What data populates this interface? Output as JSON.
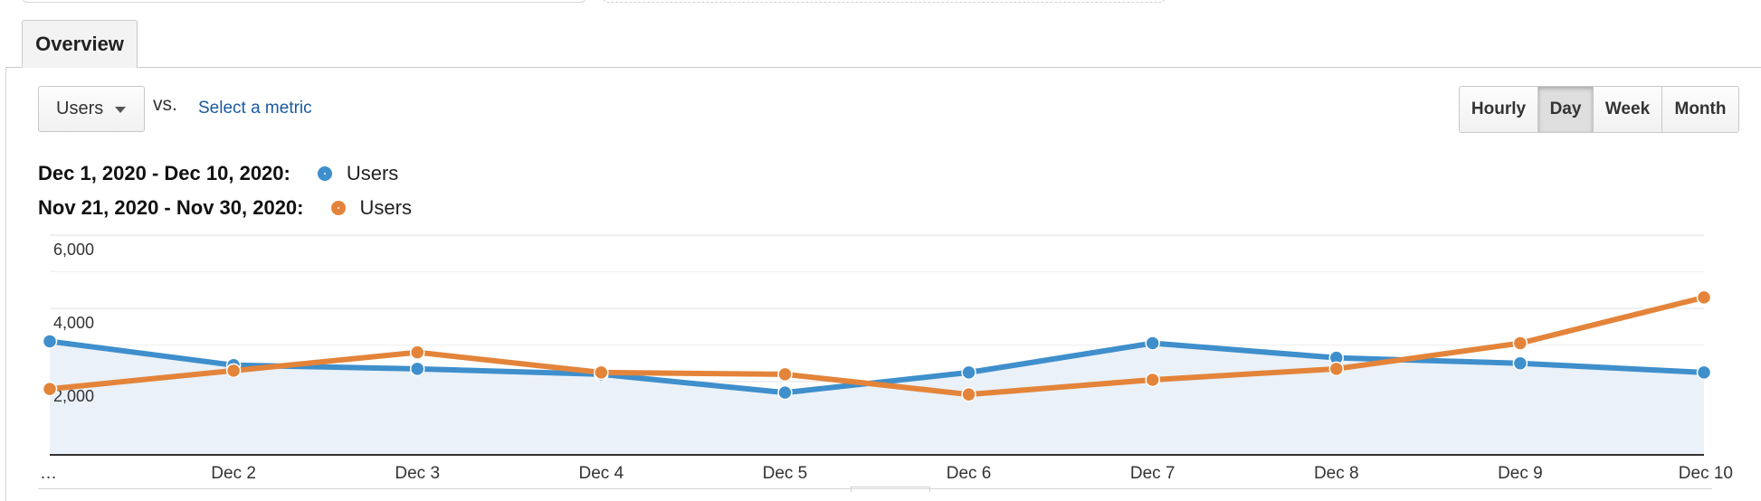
{
  "tabs": [
    {
      "label": "Overview",
      "active": true
    }
  ],
  "metric_selector": {
    "value": "Users",
    "icon": "caret-down-icon"
  },
  "compare": {
    "vs_label": "vs.",
    "select_label": "Select a metric"
  },
  "granularity": {
    "options": [
      {
        "key": "hourly",
        "label": "Hourly"
      },
      {
        "key": "day",
        "label": "Day"
      },
      {
        "key": "week",
        "label": "Week"
      },
      {
        "key": "month",
        "label": "Month"
      }
    ],
    "selected": "Day"
  },
  "legend": [
    {
      "range": "Dec 1, 2020 - Dec 10, 2020:",
      "series": "Users",
      "color": "#3e8fcb"
    },
    {
      "range": "Nov 21, 2020 - Nov 30, 2020:",
      "series": "Users",
      "color": "#e3843a"
    }
  ],
  "chart_data": {
    "type": "line",
    "categories": [
      "…",
      "Dec 2",
      "Dec 3",
      "Dec 4",
      "Dec 5",
      "Dec 6",
      "Dec 7",
      "Dec 8",
      "Dec 9",
      "Dec 10"
    ],
    "ylim": [
      0,
      6000
    ],
    "y_ticks": [
      2000,
      4000,
      6000
    ],
    "y_tick_labels": [
      "2,000",
      "4,000",
      "6,000"
    ],
    "grid": true,
    "series": [
      {
        "name": "Users",
        "color": "#3e8fcb",
        "area_fill": "#eaf1f9",
        "values": [
          3100,
          2450,
          2350,
          2200,
          1700,
          2250,
          3050,
          2650,
          2500,
          2250
        ]
      },
      {
        "name": "Users",
        "color": "#e3843a",
        "values": [
          1800,
          2300,
          2800,
          2250,
          2200,
          1650,
          2050,
          2350,
          3050,
          4300
        ]
      }
    ]
  }
}
